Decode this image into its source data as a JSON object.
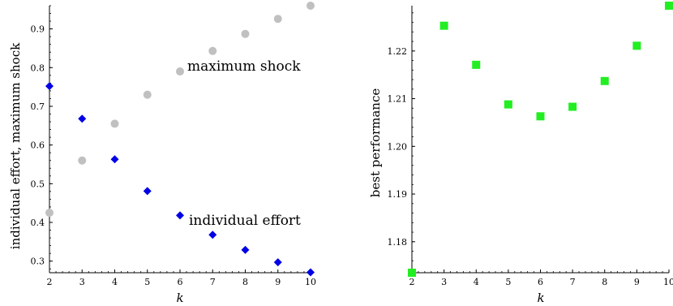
{
  "chart_data": [
    {
      "type": "scatter",
      "xlabel": "k",
      "ylabel": "individual effort, maximum shock",
      "xlim": [
        2,
        10
      ],
      "ylim": [
        0.27,
        0.96
      ],
      "xticks": [
        2,
        3,
        4,
        5,
        6,
        7,
        8,
        9,
        10
      ],
      "yticks": [
        0.3,
        0.4,
        0.5,
        0.6,
        0.7,
        0.8,
        0.9
      ],
      "ytick_labels": [
        "0.3",
        "0.4",
        "0.5",
        "0.6",
        "0.7",
        "0.8",
        "0.9"
      ],
      "grid": false,
      "series": [
        {
          "name": "maximum shock",
          "marker": "circle",
          "color": "#c0c0c0",
          "x": [
            2,
            3,
            4,
            5,
            6,
            7,
            8,
            9,
            10
          ],
          "y": [
            0.425,
            0.56,
            0.655,
            0.73,
            0.79,
            0.843,
            0.887,
            0.926,
            0.96
          ]
        },
        {
          "name": "individual effort",
          "marker": "diamond",
          "color": "#0000e6",
          "x": [
            2,
            3,
            4,
            5,
            6,
            7,
            8,
            9,
            10
          ],
          "y": [
            0.752,
            0.668,
            0.563,
            0.481,
            0.418,
            0.368,
            0.329,
            0.297,
            0.271
          ]
        }
      ]
    },
    {
      "type": "scatter",
      "xlabel": "k",
      "ylabel": "best performance",
      "xlim": [
        2,
        10
      ],
      "ylim": [
        1.1735,
        1.2295
      ],
      "xticks": [
        2,
        3,
        4,
        5,
        6,
        7,
        8,
        9,
        10
      ],
      "yticks": [
        1.18,
        1.19,
        1.2,
        1.21,
        1.22
      ],
      "ytick_labels": [
        "1.18",
        "1.19",
        "1.20",
        "1.21",
        "1.22"
      ],
      "grid": false,
      "series": [
        {
          "marker": "square",
          "color": "#22ee22",
          "x": [
            2,
            3,
            4,
            5,
            6,
            7,
            8,
            9,
            10
          ],
          "y": [
            1.1735,
            1.2253,
            1.2171,
            1.2088,
            1.2063,
            1.2083,
            1.2137,
            1.2211,
            1.2295
          ]
        }
      ]
    }
  ]
}
